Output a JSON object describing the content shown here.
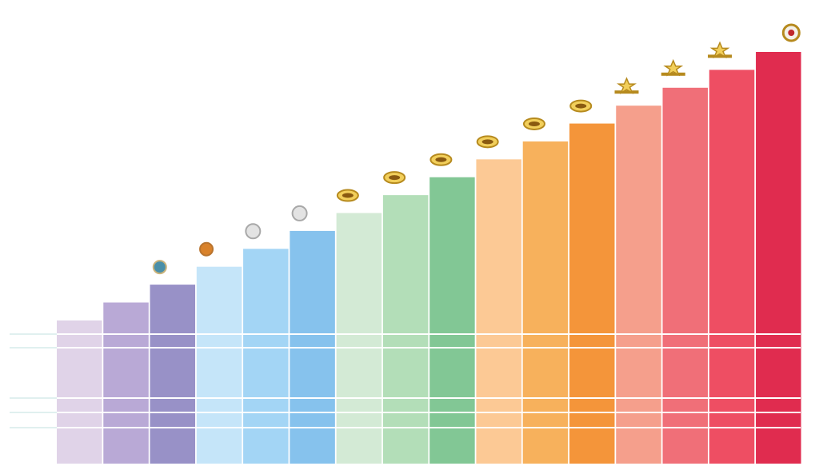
{
  "chart_data": {
    "type": "bar",
    "values": [
      8,
      9,
      10,
      11,
      12,
      13,
      14,
      15,
      16,
      17,
      18,
      19,
      20,
      21,
      22,
      23
    ],
    "colors": [
      "#e0d3e8",
      "#b9a9d6",
      "#9891c7",
      "#c5e5f9",
      "#a3d5f5",
      "#86c2ed",
      "#d3ead5",
      "#b3deb8",
      "#82c795",
      "#fcc995",
      "#f7b15c",
      "#f4953a",
      "#f59f8c",
      "#f06f78",
      "#ee4e63",
      "#e02c4f"
    ]
  }
}
